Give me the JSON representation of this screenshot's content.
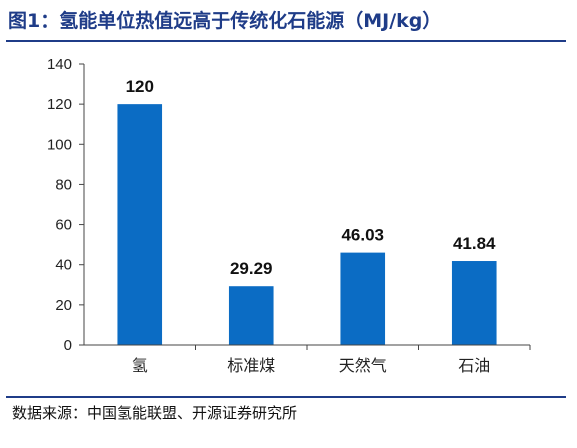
{
  "header": {
    "title": "图1：氢能单位热值远高于传统化石能源（MJ/kg）"
  },
  "footer": {
    "source": "数据来源：中国氢能联盟、开源证券研究所"
  },
  "colors": {
    "bar": "#0b6cc4",
    "accent": "#1f3c88"
  },
  "chart_data": {
    "type": "bar",
    "title": "图1：氢能单位热值远高于传统化石能源（MJ/kg）",
    "categories": [
      "氢",
      "标准煤",
      "天然气",
      "石油"
    ],
    "values": [
      120,
      29.29,
      46.03,
      41.84
    ],
    "value_labels": [
      "120",
      "29.29",
      "46.03",
      "41.84"
    ],
    "ylim": [
      0,
      140
    ],
    "yticks": [
      0,
      20,
      40,
      60,
      80,
      100,
      120,
      140
    ],
    "xlabel": "",
    "ylabel": "",
    "grid": false,
    "legend": "none"
  }
}
